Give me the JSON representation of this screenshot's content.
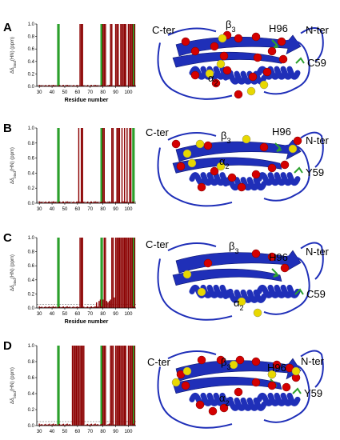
{
  "figure": {
    "panels": [
      {
        "letter": "A",
        "labels": {
          "cter": "C-ter",
          "beta": "β",
          "beta_sub": "3",
          "his": "H96",
          "nter": "N-ter",
          "alpha": "α",
          "alpha_sub": "2",
          "res": "C59"
        }
      },
      {
        "letter": "B",
        "labels": {
          "cter": "C-ter",
          "beta": "β",
          "beta_sub": "3",
          "his": "H96",
          "nter": "N-ter",
          "alpha": "α",
          "alpha_sub": "2",
          "res": "Y59"
        }
      },
      {
        "letter": "C",
        "labels": {
          "cter": "C-ter",
          "beta": "β",
          "beta_sub": "3",
          "his": "H96",
          "nter": "N-ter",
          "alpha": "α",
          "alpha_sub": "2",
          "res": "C59"
        }
      },
      {
        "letter": "D",
        "labels": {
          "cter": "C-ter",
          "beta": "β",
          "beta_sub": "3",
          "his": "H96",
          "nter": "N-ter",
          "alpha": "α",
          "alpha_sub": "2",
          "res": "Y59"
        }
      }
    ]
  },
  "colors": {
    "bar": "#8b0000",
    "green": "#2ca02c",
    "helix": "#1f2fb8",
    "red_sphere": "#d40000",
    "yellow_sphere": "#e8d800"
  },
  "chart_data": [
    {
      "type": "bar",
      "panel": "A",
      "ylabel_main": "Δδ",
      "ylabel_sub": "bind",
      "ylabel_rest": "(HN) (ppm)",
      "xlabel": "Residue number",
      "xlim": [
        28,
        106
      ],
      "ylim": [
        0,
        1.0
      ],
      "xticks": [
        "30",
        "40",
        "50",
        "60",
        "70",
        "80",
        "90",
        "100"
      ],
      "yticks": [
        "0.0",
        "0.2",
        "0.4",
        "0.6",
        "0.8",
        "1.0"
      ],
      "threshold": 0.02,
      "green_residues": [
        45,
        79,
        104
      ],
      "residues": [
        62,
        63,
        64,
        80,
        81,
        82,
        86,
        87,
        90,
        91,
        92,
        94,
        95,
        96,
        97,
        98,
        100,
        101,
        102,
        103,
        105
      ],
      "values": [
        1.0,
        1.0,
        1.0,
        1.0,
        1.0,
        1.0,
        1.0,
        1.0,
        1.0,
        1.0,
        1.0,
        1.0,
        1.0,
        1.0,
        1.0,
        1.0,
        1.0,
        1.0,
        1.0,
        1.0,
        1.0
      ]
    },
    {
      "type": "bar",
      "panel": "B",
      "ylabel_main": "Δδ",
      "ylabel_sub": "bind",
      "ylabel_rest": "(HN) (ppm)",
      "xlabel": "Residue number",
      "xlim": [
        28,
        106
      ],
      "ylim": [
        0,
        1.0
      ],
      "xticks": [
        "30",
        "40",
        "50",
        "60",
        "70",
        "80",
        "90",
        "100"
      ],
      "yticks": [
        "0.0",
        "0.2",
        "0.4",
        "0.6",
        "0.8",
        "1.0"
      ],
      "threshold": 0.02,
      "green_residues": [
        45,
        79,
        104
      ],
      "residues": [
        61,
        63,
        64,
        80,
        81,
        87,
        88,
        91,
        92,
        93,
        95,
        97,
        99,
        101,
        102
      ],
      "values": [
        1.0,
        1.0,
        1.0,
        1.0,
        1.0,
        1.0,
        1.0,
        1.0,
        1.0,
        1.0,
        1.0,
        1.0,
        1.0,
        1.0,
        1.0
      ]
    },
    {
      "type": "bar",
      "panel": "C",
      "ylabel_main": "Δδ",
      "ylabel_sub": "bind",
      "ylabel_rest": "(HN) (ppm)",
      "xlabel": "Residue number",
      "xlim": [
        28,
        106
      ],
      "ylim": [
        0,
        1.0
      ],
      "xticks": [
        "30",
        "40",
        "50",
        "60",
        "70",
        "80",
        "90",
        "100"
      ],
      "yticks": [
        "0.0",
        "0.2",
        "0.4",
        "0.6",
        "0.8",
        "1.0"
      ],
      "threshold": 0.05,
      "green_residues": [
        45,
        79,
        104
      ],
      "residues": [
        62,
        63,
        64,
        75,
        77,
        78,
        80,
        81,
        82,
        83,
        84,
        85,
        86,
        87,
        88,
        89,
        90,
        91,
        92,
        93,
        94,
        95,
        96,
        97,
        98,
        99,
        100,
        101,
        102,
        103,
        105
      ],
      "values": [
        1.0,
        1.0,
        1.0,
        0.08,
        0.1,
        0.12,
        0.12,
        1.0,
        1.0,
        0.1,
        0.08,
        0.1,
        0.12,
        1.0,
        1.0,
        0.15,
        1.0,
        1.0,
        1.0,
        1.0,
        1.0,
        1.0,
        1.0,
        1.0,
        1.0,
        1.0,
        1.0,
        1.0,
        1.0,
        1.0,
        1.0
      ]
    },
    {
      "type": "bar",
      "panel": "D",
      "ylabel_main": "Δδ",
      "ylabel_sub": "bind",
      "ylabel_rest": "(HN) (ppm)",
      "xlabel": "Residue number",
      "xlim": [
        28,
        106
      ],
      "ylim": [
        0,
        1.0
      ],
      "xticks": [
        "30",
        "40",
        "50",
        "60",
        "70",
        "80",
        "90",
        "100"
      ],
      "yticks": [
        "0.0",
        "0.2",
        "0.4",
        "0.6",
        "0.8",
        "1.0"
      ],
      "threshold": 0.05,
      "green_residues": [
        45,
        79,
        104
      ],
      "residues": [
        56,
        57,
        58,
        59,
        60,
        61,
        62,
        63,
        64,
        65,
        80,
        81,
        82,
        86,
        87,
        88,
        90,
        91,
        92,
        93,
        94,
        95,
        96,
        97,
        98,
        100,
        101,
        102,
        103,
        105
      ],
      "values": [
        1.0,
        1.0,
        1.0,
        1.0,
        1.0,
        1.0,
        1.0,
        1.0,
        1.0,
        1.0,
        1.0,
        1.0,
        1.0,
        1.0,
        1.0,
        1.0,
        1.0,
        1.0,
        1.0,
        1.0,
        1.0,
        1.0,
        1.0,
        1.0,
        1.0,
        1.0,
        1.0,
        1.0,
        1.0,
        1.0
      ]
    }
  ]
}
